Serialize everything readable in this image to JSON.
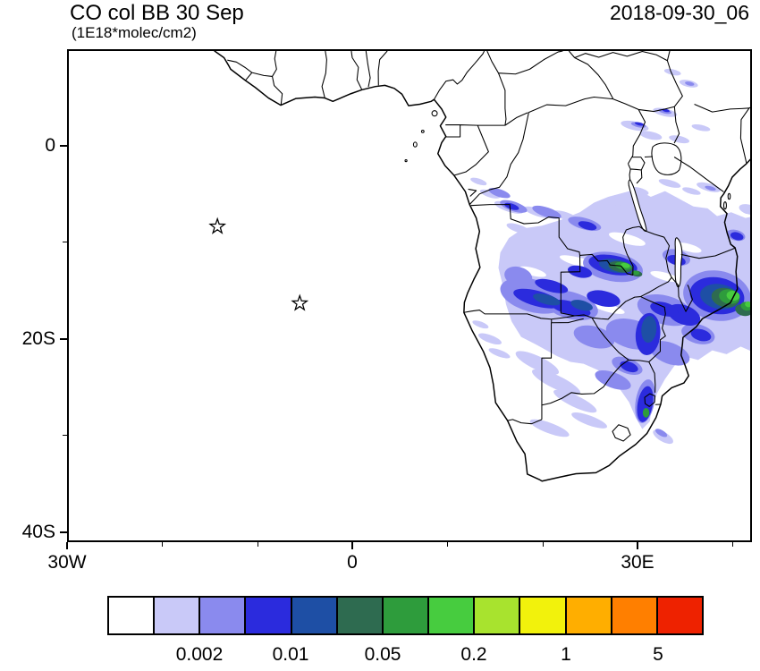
{
  "chart_data": {
    "type": "heatmap",
    "title": "CO col BB 30 Sep",
    "units_label": "(1E18*molec/cm2)",
    "timestamp": "2018-09-30_06",
    "x_axis": {
      "tick_labels": [
        "30W",
        "0",
        "30E"
      ],
      "tick_lons": [
        -30,
        0,
        30
      ]
    },
    "y_axis": {
      "tick_labels": [
        "0",
        "20S",
        "40S"
      ],
      "tick_lats": [
        0,
        -20,
        -40
      ]
    },
    "lon_range": [
      -30,
      42
    ],
    "lat_range": [
      -41,
      10
    ],
    "colorbar": {
      "tick_labels": [
        "0.002",
        "0.01",
        "0.05",
        "0.2",
        "1",
        "5"
      ],
      "colors": [
        "#ffffff",
        "#c9c9f8",
        "#8a8aee",
        "#2b2bdd",
        "#1e4fa5",
        "#2e6b50",
        "#2e9c3c",
        "#47cc3f",
        "#a8e32e",
        "#f2f20c",
        "#ffae00",
        "#ff7f00",
        "#ee2200"
      ]
    },
    "markers": [
      {
        "symbol": "star",
        "lon": -14.3,
        "lat": -8.3
      },
      {
        "symbol": "star",
        "lon": -5.6,
        "lat": -16.3
      }
    ]
  }
}
